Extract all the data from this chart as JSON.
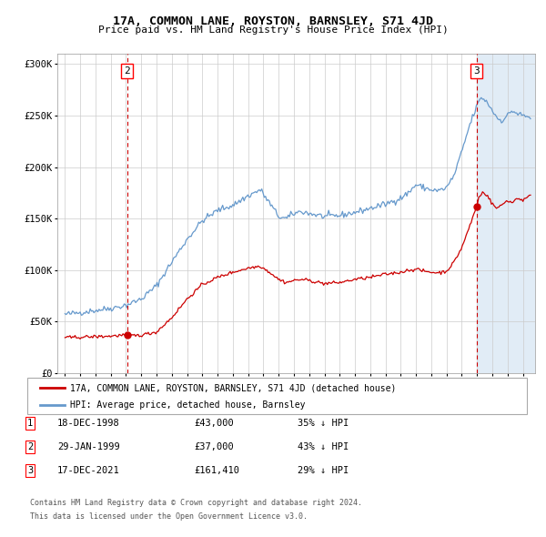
{
  "title": "17A, COMMON LANE, ROYSTON, BARNSLEY, S71 4JD",
  "subtitle": "Price paid vs. HM Land Registry's House Price Index (HPI)",
  "legend_line1": "17A, COMMON LANE, ROYSTON, BARNSLEY, S71 4JD (detached house)",
  "legend_line2": "HPI: Average price, detached house, Barnsley",
  "red_line_color": "#cc0000",
  "blue_line_color": "#6699cc",
  "bg_shade_color": "#dce9f5",
  "grid_color": "#cccccc",
  "sale2_x": 1999.08,
  "sale2_y": 37000,
  "sale3_x": 2021.96,
  "sale3_y": 161410,
  "sale1_x": 1998.96,
  "sale1_y": 43000,
  "footnote1": "Contains HM Land Registry data © Crown copyright and database right 2024.",
  "footnote2": "This data is licensed under the Open Government Licence v3.0.",
  "table_rows": [
    {
      "num": "1",
      "date": "18-DEC-1998",
      "price": "£43,000",
      "hpi": "35% ↓ HPI"
    },
    {
      "num": "2",
      "date": "29-JAN-1999",
      "price": "£37,000",
      "hpi": "43% ↓ HPI"
    },
    {
      "num": "3",
      "date": "17-DEC-2021",
      "price": "£161,410",
      "hpi": "29% ↓ HPI"
    }
  ],
  "ylim": [
    0,
    310000
  ],
  "xlim_start": 1994.5,
  "xlim_end": 2025.8,
  "shade_start": 2021.96,
  "shade_end": 2025.8,
  "hpi_anchors": [
    [
      1995.0,
      57000
    ],
    [
      1996.0,
      59000
    ],
    [
      1997.0,
      61000
    ],
    [
      1998.0,
      63000
    ],
    [
      1999.0,
      66000
    ],
    [
      2000.0,
      72000
    ],
    [
      2001.0,
      85000
    ],
    [
      2002.0,
      108000
    ],
    [
      2003.0,
      130000
    ],
    [
      2004.0,
      148000
    ],
    [
      2005.0,
      158000
    ],
    [
      2006.0,
      163000
    ],
    [
      2007.0,
      172000
    ],
    [
      2007.8,
      178000
    ],
    [
      2008.5,
      163000
    ],
    [
      2009.0,
      152000
    ],
    [
      2009.5,
      150000
    ],
    [
      2010.0,
      155000
    ],
    [
      2010.5,
      157000
    ],
    [
      2011.0,
      155000
    ],
    [
      2012.0,
      152000
    ],
    [
      2013.0,
      153000
    ],
    [
      2014.0,
      156000
    ],
    [
      2015.0,
      160000
    ],
    [
      2016.0,
      164000
    ],
    [
      2017.0,
      170000
    ],
    [
      2017.5,
      175000
    ],
    [
      2018.0,
      183000
    ],
    [
      2018.5,
      180000
    ],
    [
      2019.0,
      178000
    ],
    [
      2019.5,
      177000
    ],
    [
      2020.0,
      180000
    ],
    [
      2020.5,
      192000
    ],
    [
      2021.0,
      215000
    ],
    [
      2021.5,
      240000
    ],
    [
      2022.0,
      260000
    ],
    [
      2022.3,
      268000
    ],
    [
      2022.7,
      262000
    ],
    [
      2023.0,
      255000
    ],
    [
      2023.3,
      248000
    ],
    [
      2023.6,
      245000
    ],
    [
      2024.0,
      250000
    ],
    [
      2024.3,
      255000
    ],
    [
      2024.6,
      252000
    ],
    [
      2025.0,
      250000
    ],
    [
      2025.5,
      248000
    ]
  ],
  "price_anchors": [
    [
      1995.0,
      34500
    ],
    [
      1996.0,
      35000
    ],
    [
      1997.0,
      35500
    ],
    [
      1998.0,
      36000
    ],
    [
      1998.8,
      37000
    ],
    [
      1999.1,
      37000
    ],
    [
      1999.5,
      36500
    ],
    [
      2000.0,
      37000
    ],
    [
      2001.0,
      40000
    ],
    [
      2002.0,
      54000
    ],
    [
      2003.0,
      72000
    ],
    [
      2004.0,
      86000
    ],
    [
      2005.0,
      93000
    ],
    [
      2006.0,
      98000
    ],
    [
      2007.0,
      102000
    ],
    [
      2007.8,
      104000
    ],
    [
      2008.5,
      97000
    ],
    [
      2009.0,
      91000
    ],
    [
      2009.5,
      88000
    ],
    [
      2010.0,
      90000
    ],
    [
      2010.5,
      91000
    ],
    [
      2011.0,
      90000
    ],
    [
      2012.0,
      87000
    ],
    [
      2013.0,
      88000
    ],
    [
      2014.0,
      91000
    ],
    [
      2015.0,
      93000
    ],
    [
      2016.0,
      96000
    ],
    [
      2017.0,
      98000
    ],
    [
      2017.5,
      100000
    ],
    [
      2018.0,
      101000
    ],
    [
      2018.5,
      99000
    ],
    [
      2019.0,
      98000
    ],
    [
      2019.5,
      97500
    ],
    [
      2020.0,
      99000
    ],
    [
      2020.5,
      108000
    ],
    [
      2021.0,
      122000
    ],
    [
      2021.5,
      142000
    ],
    [
      2021.96,
      161410
    ],
    [
      2022.1,
      170000
    ],
    [
      2022.4,
      176000
    ],
    [
      2022.7,
      172000
    ],
    [
      2023.0,
      164000
    ],
    [
      2023.3,
      160000
    ],
    [
      2023.6,
      163000
    ],
    [
      2024.0,
      168000
    ],
    [
      2024.3,
      165000
    ],
    [
      2024.6,
      170000
    ],
    [
      2025.0,
      168000
    ],
    [
      2025.5,
      172000
    ]
  ]
}
